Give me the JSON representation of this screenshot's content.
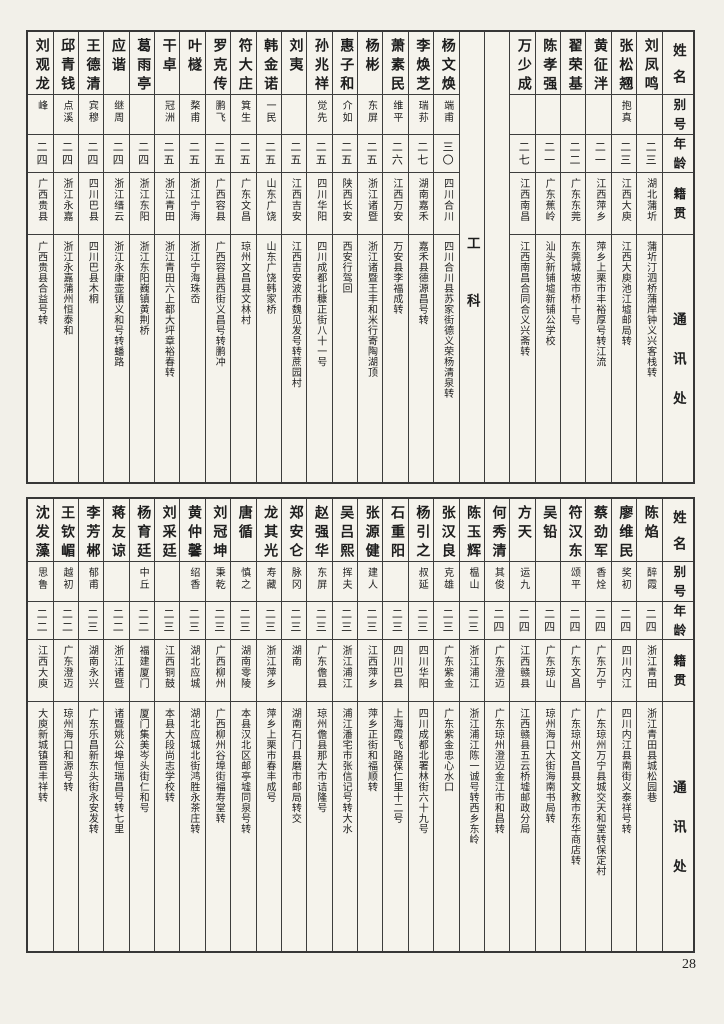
{
  "page": {
    "number": "28"
  },
  "colors": {
    "paper": "#f2f0e9",
    "ink": "#1d1d1d",
    "grid_line": "#3d3d3d"
  },
  "header_labels": {
    "name": "姓名",
    "alias": "别号",
    "age": "年龄",
    "native": "籍贯",
    "contact": "通讯处"
  },
  "section_label": "工科",
  "tables": [
    {
      "id": "upper",
      "columns": [
        {
          "type": "header"
        },
        {
          "type": "person",
          "name": "刘凤鸣",
          "alias": "",
          "age": "二三",
          "native": "湖北蒲圻",
          "contact": "蒲圻汀泗桥蒲岸钟义兴客栈转"
        },
        {
          "type": "person",
          "name": "张松翘",
          "alias": "抱真",
          "age": "二三",
          "native": "江西大庾",
          "contact": "江西大庾池江墟邮局转"
        },
        {
          "type": "person",
          "name": "黄征泮",
          "alias": "",
          "age": "二一",
          "native": "江西萍乡",
          "contact": "萍乡上栗市丰裕厚号转江流"
        },
        {
          "type": "person",
          "name": "翟荣基",
          "alias": "",
          "age": "二二",
          "native": "广东东莞",
          "contact": "东莞城坡市桥十号"
        },
        {
          "type": "person",
          "name": "陈孝强",
          "alias": "",
          "age": "二一",
          "native": "广东蕉岭",
          "contact": "汕头新铺墟新铺公学校"
        },
        {
          "type": "person",
          "name": "万少成",
          "alias": "",
          "age": "二七",
          "native": "江西南昌",
          "contact": "江西南昌合同合义兴斋转"
        },
        {
          "type": "spacer"
        },
        {
          "type": "section"
        },
        {
          "type": "person",
          "name": "杨文焕",
          "alias": "端甫",
          "age": "三〇",
          "native": "四川合川",
          "contact": "四川合川县苏家街德义荣杨清泉转"
        },
        {
          "type": "person",
          "name": "李焕芝",
          "alias": "瑞荪",
          "age": "二七",
          "native": "湖南嘉禾",
          "contact": "嘉禾县德源昌号转"
        },
        {
          "type": "person",
          "name": "萧素民",
          "alias": "维平",
          "age": "二六",
          "native": "江西万安",
          "contact": "万安县李福成转"
        },
        {
          "type": "person",
          "name": "杨彬",
          "alias": "东屏",
          "age": "二五",
          "native": "浙江诸暨",
          "contact": "浙江诸暨王丰和米行寄陶湖顶"
        },
        {
          "type": "person",
          "name": "惠子和",
          "alias": "介如",
          "age": "二五",
          "native": "陕西长安",
          "contact": "西安行驾回"
        },
        {
          "type": "person",
          "name": "孙兆祥",
          "alias": "觉先",
          "age": "二五",
          "native": "四川华阳",
          "contact": "四川成都北糠正街八十一号"
        },
        {
          "type": "person",
          "name": "刘夷",
          "alias": "",
          "age": "二五",
          "native": "江西吉安",
          "contact": "江西吉安波市魏见发号转蔗园村"
        },
        {
          "type": "person",
          "name": "韩金诺",
          "alias": "一民",
          "age": "二五",
          "native": "山东广饶",
          "contact": "山东广饶韩家桥"
        },
        {
          "type": "person",
          "name": "符大庄",
          "alias": "箕生",
          "age": "二五",
          "native": "广东文昌",
          "contact": "琼州文昌县文林村"
        },
        {
          "type": "person",
          "name": "罗克传",
          "alias": "鹏飞",
          "age": "二五",
          "native": "广西容县",
          "contact": "广西容县西街义昌号转鹏冲"
        },
        {
          "type": "person",
          "name": "叶檖",
          "alias": "楘甫",
          "age": "二五",
          "native": "浙江宁海",
          "contact": "浙江宁海珠岙"
        },
        {
          "type": "person",
          "name": "干卓",
          "alias": "冠洲",
          "age": "二五",
          "native": "浙江青田",
          "contact": "浙江青田六上都大坪章裕春转"
        },
        {
          "type": "person",
          "name": "葛雨亭",
          "alias": "",
          "age": "二四",
          "native": "浙江东阳",
          "contact": "浙江东阳巍镇黄荆桥"
        },
        {
          "type": "person",
          "name": "应谐",
          "alias": "继周",
          "age": "二四",
          "native": "浙江缙云",
          "contact": "浙江永康壶镇义和号转蟠路"
        },
        {
          "type": "person",
          "name": "王德清",
          "alias": "宾穆",
          "age": "二四",
          "native": "四川巴县",
          "contact": "四川巴县木桐"
        },
        {
          "type": "person",
          "name": "邱青钱",
          "alias": "点溪",
          "age": "二四",
          "native": "浙江永嘉",
          "contact": "浙江永嘉蒲州恒泰和"
        },
        {
          "type": "person",
          "name": "刘观龙",
          "alias": "峰",
          "age": "二四",
          "native": "广西贵县",
          "contact": "广西贵县合益号转"
        }
      ]
    },
    {
      "id": "lower",
      "columns": [
        {
          "type": "header"
        },
        {
          "type": "person",
          "name": "陈焰",
          "alias": "醉霞",
          "age": "二四",
          "native": "浙江青田",
          "contact": "浙江青田县城松园巷"
        },
        {
          "type": "person",
          "name": "廖维民",
          "alias": "奖初",
          "age": "二四",
          "native": "四川内江",
          "contact": "四川内江县南街义泰祥号转"
        },
        {
          "type": "person",
          "name": "蔡劲军",
          "alias": "香烇",
          "age": "二四",
          "native": "广东万宁",
          "contact": "广东琼州万宁县城交天和堂转保定村"
        },
        {
          "type": "person",
          "name": "符汉东",
          "alias": "颂平",
          "age": "二四",
          "native": "广东文昌",
          "contact": "广东琼州文昌县文教市东华商店转"
        },
        {
          "type": "person",
          "name": "吴铅",
          "alias": "",
          "age": "二四",
          "native": "广东琼山",
          "contact": "琼州海口大街海南书局转"
        },
        {
          "type": "person",
          "name": "方天",
          "alias": "运九",
          "age": "二四",
          "native": "江西赣县",
          "contact": "江西赣县五云桥墟邮政分局"
        },
        {
          "type": "person",
          "name": "何秀清",
          "alias": "其俊",
          "age": "二四",
          "native": "广东澄迈",
          "contact": "广东琼州澄迈金江市和昌转"
        },
        {
          "type": "person",
          "name": "陈玉辉",
          "alias": "榅山",
          "age": "二三",
          "native": "浙江浦江",
          "contact": "浙江浦江陈一诚号转西乡东岭"
        },
        {
          "type": "person",
          "name": "张汉良",
          "alias": "克雄",
          "age": "二三",
          "native": "广东紫金",
          "contact": "广东紫金忠心水口"
        },
        {
          "type": "person",
          "name": "杨引之",
          "alias": "叔延",
          "age": "二三",
          "native": "四川华阳",
          "contact": "四川成都北署林街六十九号"
        },
        {
          "type": "person",
          "name": "石重阳",
          "alias": "",
          "age": "二三",
          "native": "四川巴县",
          "contact": "上海霞飞路葆仁里十二号"
        },
        {
          "type": "person",
          "name": "张源健",
          "alias": "建人",
          "age": "二三",
          "native": "江西萍乡",
          "contact": "萍乡正街和福顺转"
        },
        {
          "type": "person",
          "name": "吴吕熙",
          "alias": "挥夫",
          "age": "二三",
          "native": "浙江浦江",
          "contact": "浦江潘宅市张信记号转大水"
        },
        {
          "type": "person",
          "name": "赵强华",
          "alias": "东屏",
          "age": "二三",
          "native": "广东儋县",
          "contact": "琼州儋县那大市诘隆号"
        },
        {
          "type": "person",
          "name": "郑安仑",
          "alias": "脉冈",
          "age": "二三",
          "native": "湖南",
          "contact": "湖南石门县磨市邮局转交"
        },
        {
          "type": "person",
          "name": "龙其光",
          "alias": "寿藏",
          "age": "二三",
          "native": "浙江萍乡",
          "contact": "萍乡上栗市春丰成号"
        },
        {
          "type": "person",
          "name": "唐循",
          "alias": "慎之",
          "age": "二三",
          "native": "湖南零陵",
          "contact": "本县汉北区邮亭墟同泉号转"
        },
        {
          "type": "person",
          "name": "刘冠坤",
          "alias": "秉乾",
          "age": "二三",
          "native": "广西柳州",
          "contact": "广西柳州谷埠街福寿堂转"
        },
        {
          "type": "person",
          "name": "黄仲馨",
          "alias": "绍香",
          "age": "二三",
          "native": "湖北应城",
          "contact": "湖北应城北街鸿胜永茶庄转"
        },
        {
          "type": "person",
          "name": "刘采廷",
          "alias": "",
          "age": "二三",
          "native": "江西铜鼓",
          "contact": "本县大段尚志学校转"
        },
        {
          "type": "person",
          "name": "杨育廷",
          "alias": "中丘",
          "age": "二二",
          "native": "福建厦门",
          "contact": "厦门集美岑头街仁和号"
        },
        {
          "type": "person",
          "name": "蒋友谅",
          "alias": "",
          "age": "二二",
          "native": "浙江诸暨",
          "contact": "诸暨姚公埠恒瑞昌号转七里"
        },
        {
          "type": "person",
          "name": "李芳郴",
          "alias": "郁甫",
          "age": "二三",
          "native": "湖南永兴",
          "contact": "广东乐昌新东头街永安发转"
        },
        {
          "type": "person",
          "name": "王钦嵋",
          "alias": "越初",
          "age": "二二",
          "native": "广东澄迈",
          "contact": "琼州海口和源号转"
        },
        {
          "type": "person",
          "name": "沈发藻",
          "alias": "思鲁",
          "age": "二二",
          "native": "江西大庾",
          "contact": "大庾新城镇晋丰祥转"
        }
      ]
    }
  ]
}
